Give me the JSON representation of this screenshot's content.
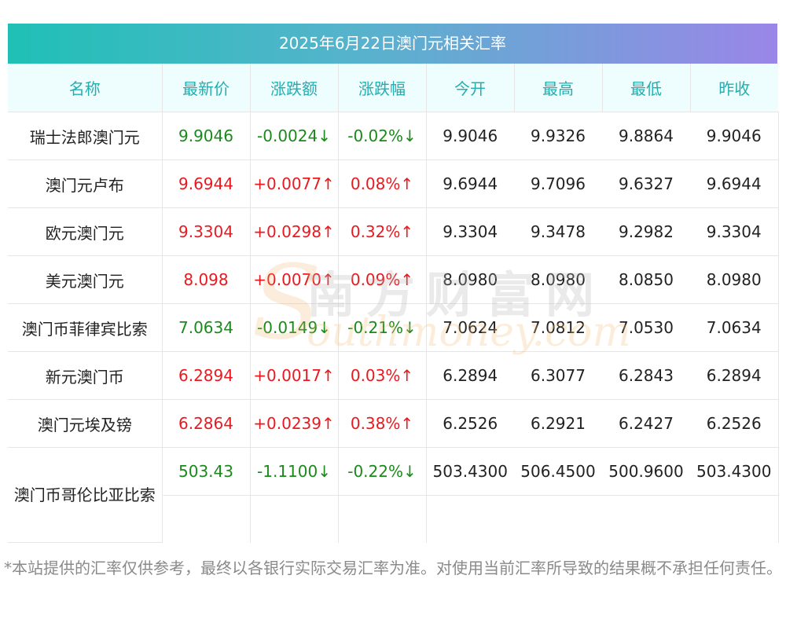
{
  "title": "2025年6月22日澳门元相关汇率",
  "columns": [
    "名称",
    "最新价",
    "涨跌额",
    "涨跌幅",
    "今开",
    "最高",
    "最低",
    "昨收"
  ],
  "colors": {
    "up": "#e8191f",
    "down": "#1a8a1a",
    "header_text": "#22aeb0"
  },
  "rows": [
    {
      "name": "瑞士法郎澳门元",
      "latest": "9.9046",
      "change": "-0.0024↓",
      "pct": "-0.02%↓",
      "open": "9.9046",
      "high": "9.9326",
      "low": "9.8864",
      "prev": "9.9046",
      "dir": "down"
    },
    {
      "name": "澳门元卢布",
      "latest": "9.6944",
      "change": "+0.0077↑",
      "pct": "0.08%↑",
      "open": "9.6944",
      "high": "9.7096",
      "low": "9.6327",
      "prev": "9.6944",
      "dir": "up"
    },
    {
      "name": "欧元澳门元",
      "latest": "9.3304",
      "change": "+0.0298↑",
      "pct": "0.32%↑",
      "open": "9.3304",
      "high": "9.3478",
      "low": "9.2982",
      "prev": "9.3304",
      "dir": "up"
    },
    {
      "name": "美元澳门元",
      "latest": "8.098",
      "change": "+0.0070↑",
      "pct": "0.09%↑",
      "open": "8.0980",
      "high": "8.0980",
      "low": "8.0850",
      "prev": "8.0980",
      "dir": "up"
    },
    {
      "name": "澳门币菲律宾比索",
      "latest": "7.0634",
      "change": "-0.0149↓",
      "pct": "-0.21%↓",
      "open": "7.0624",
      "high": "7.0812",
      "low": "7.0530",
      "prev": "7.0634",
      "dir": "down"
    },
    {
      "name": "新元澳门币",
      "latest": "6.2894",
      "change": "+0.0017↑",
      "pct": "0.03%↑",
      "open": "6.2894",
      "high": "6.3077",
      "low": "6.2843",
      "prev": "6.2894",
      "dir": "up"
    },
    {
      "name": "澳门元埃及镑",
      "latest": "6.2864",
      "change": "+0.0239↑",
      "pct": "0.38%↑",
      "open": "6.2526",
      "high": "6.2921",
      "low": "6.2427",
      "prev": "6.2526",
      "dir": "up"
    },
    {
      "name": "澳门币哥伦比亚比索",
      "latest": "503.43",
      "change": "-1.1100↓",
      "pct": "-0.22%↓",
      "open": "503.4300",
      "high": "506.4500",
      "low": "500.9600",
      "prev": "503.4300",
      "dir": "down"
    }
  ],
  "watermark": {
    "cn": "南方财富网",
    "en": "outhmoney.com",
    "s": "S"
  },
  "footnote": "*本站提供的汇率仅供参考，最终以各银行实际交易汇率为准。对使用当前汇率所导致的结果概不承担任何责任。"
}
